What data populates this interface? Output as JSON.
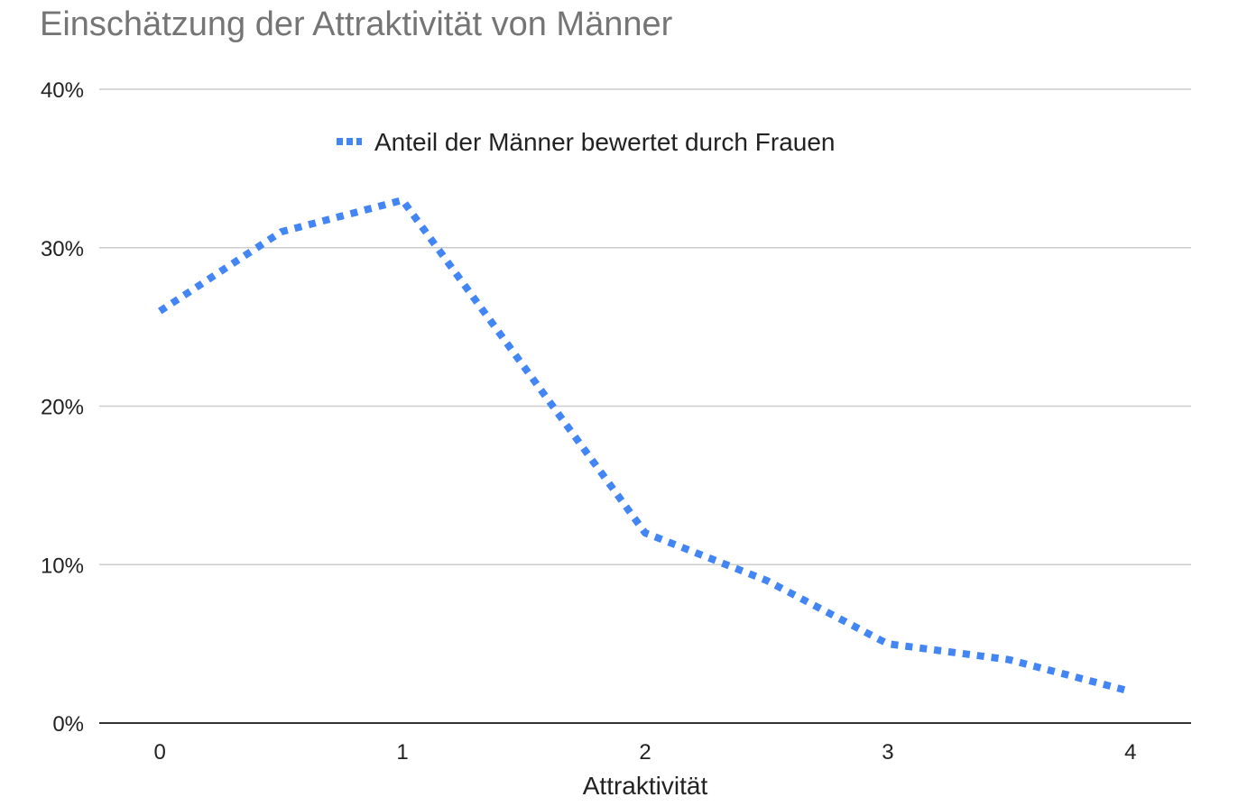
{
  "chart_data": {
    "type": "line",
    "title": "Einschätzung der Attraktivität von Männer",
    "xlabel": "Attraktivität",
    "ylabel": "",
    "x": [
      0,
      0.5,
      1,
      2,
      2.5,
      3,
      3.5,
      4
    ],
    "x_ticks": [
      0,
      1,
      2,
      3,
      4
    ],
    "x_tick_labels": [
      "0",
      "1",
      "2",
      "3",
      "4"
    ],
    "xlim": [
      -0.25,
      4.25
    ],
    "ylim": [
      0,
      0.4
    ],
    "y_ticks": [
      0,
      0.1,
      0.2,
      0.3,
      0.4
    ],
    "y_tick_labels": [
      "0%",
      "10%",
      "20%",
      "30%",
      "40%"
    ],
    "grid": true,
    "legend_position": "top",
    "series": [
      {
        "name": "Anteil der Männer bewertet durch Frauen",
        "color": "#4285f4",
        "line_style": "dotted",
        "values": [
          0.26,
          0.31,
          0.33,
          0.12,
          0.09,
          0.05,
          0.04,
          0.02
        ]
      }
    ]
  }
}
